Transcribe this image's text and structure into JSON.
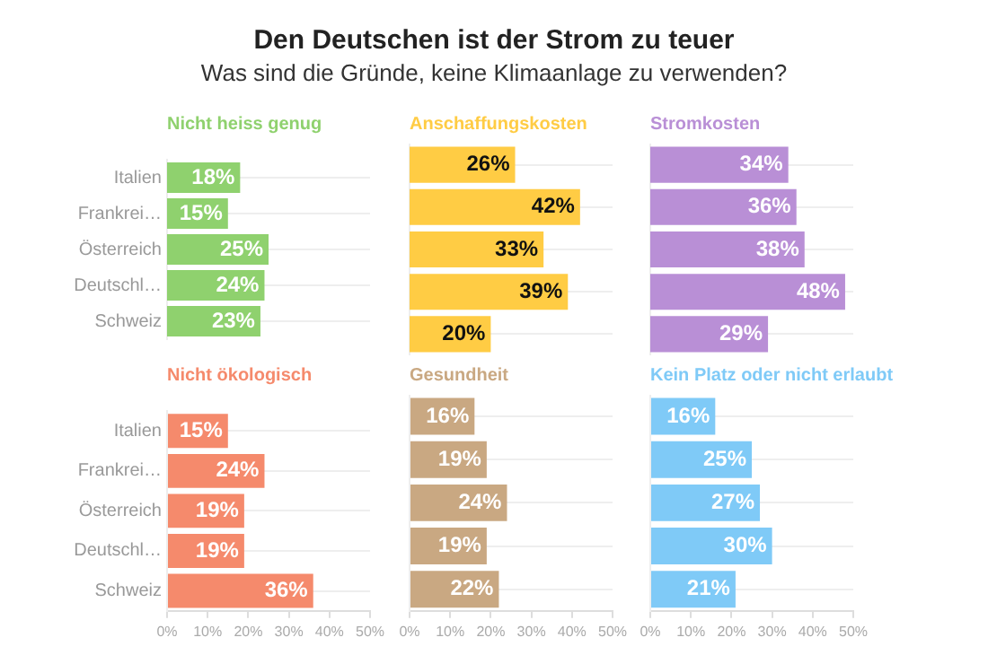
{
  "chart_data": [
    {
      "type": "other",
      "title": "Den Deutschen ist der Strom zu teuer",
      "subtitle": "Was sind die Gründe, keine Klimaanlage zu verwenden?"
    },
    {
      "type": "bar",
      "orientation": "horizontal",
      "title": "Nicht heiss genug",
      "categories": [
        "Italien",
        "Frankrei…",
        "Österreich",
        "Deutschl…",
        "Schweiz"
      ],
      "values": [
        18,
        15,
        25,
        24,
        23
      ],
      "value_labels": [
        "18%",
        "15%",
        "25%",
        "24%",
        "23%"
      ],
      "color": "#8fd16e",
      "xlim": [
        0,
        50
      ],
      "grid": "y",
      "tick_labels": "y"
    },
    {
      "type": "bar",
      "orientation": "horizontal",
      "title": "Anschaffungskosten",
      "categories": [
        null,
        null,
        null,
        null,
        null
      ],
      "values": [
        26,
        42,
        33,
        39,
        20
      ],
      "value_labels": [
        "26%",
        "42%",
        "33%",
        "39%",
        "20%"
      ],
      "color": "#ffcc44",
      "xlim": [
        0,
        50
      ],
      "grid": "y",
      "tick_labels": false
    },
    {
      "type": "bar",
      "orientation": "horizontal",
      "title": "Stromkosten",
      "categories": [
        null,
        null,
        null,
        null,
        null
      ],
      "values": [
        34,
        36,
        38,
        48,
        29
      ],
      "value_labels": [
        "34%",
        "36%",
        "38%",
        "48%",
        "29%"
      ],
      "color": "#b98fd6",
      "xlim": [
        0,
        50
      ],
      "grid": "y",
      "tick_labels": false
    },
    {
      "type": "bar",
      "orientation": "horizontal",
      "title": "Nicht ökologisch",
      "categories": [
        "Italien",
        "Frankrei…",
        "Österreich",
        "Deutschl…",
        "Schweiz"
      ],
      "values": [
        15,
        24,
        19,
        19,
        36
      ],
      "value_labels": [
        "15%",
        "24%",
        "19%",
        "19%",
        "36%"
      ],
      "color": "#f58a6c",
      "xlim": [
        0,
        50
      ],
      "xticks": [
        {
          "value": 0,
          "label": "0%"
        },
        {
          "value": 10,
          "label": "10%"
        },
        {
          "value": 20,
          "label": "20%"
        },
        {
          "value": 30,
          "label": "30%"
        },
        {
          "value": 40,
          "label": "40%"
        },
        {
          "value": 50,
          "label": "50%"
        }
      ],
      "grid": "y"
    },
    {
      "type": "bar",
      "orientation": "horizontal",
      "title": "Gesundheit",
      "categories": [
        null,
        null,
        null,
        null,
        null
      ],
      "values": [
        16,
        19,
        24,
        19,
        22
      ],
      "value_labels": [
        "16%",
        "19%",
        "24%",
        "19%",
        "22%"
      ],
      "color": "#c9a882",
      "xlim": [
        0,
        50
      ],
      "xticks": [
        {
          "value": 0,
          "label": "0%"
        },
        {
          "value": 10,
          "label": "10%"
        },
        {
          "value": 20,
          "label": "20%"
        },
        {
          "value": 30,
          "label": "30%"
        },
        {
          "value": 40,
          "label": "40%"
        },
        {
          "value": 50,
          "label": "50%"
        }
      ],
      "grid": "y",
      "tick_labels": "x"
    },
    {
      "type": "bar",
      "orientation": "horizontal",
      "title": "Kein Platz oder nicht erlaubt",
      "categories": [
        null,
        null,
        null,
        null,
        null
      ],
      "values": [
        16,
        25,
        27,
        30,
        21
      ],
      "value_labels": [
        "16%",
        "25%",
        "27%",
        "30%",
        "21%"
      ],
      "color": "#7fcaf7",
      "xlim": [
        0,
        50
      ],
      "xticks": [
        {
          "value": 0,
          "label": "0%"
        },
        {
          "value": 10,
          "label": "10%"
        },
        {
          "value": 20,
          "label": "20%"
        },
        {
          "value": 30,
          "label": "30%"
        },
        {
          "value": 40,
          "label": "40%"
        },
        {
          "value": 50,
          "label": "50%"
        }
      ],
      "grid": "y",
      "tick_labels": "x"
    }
  ]
}
